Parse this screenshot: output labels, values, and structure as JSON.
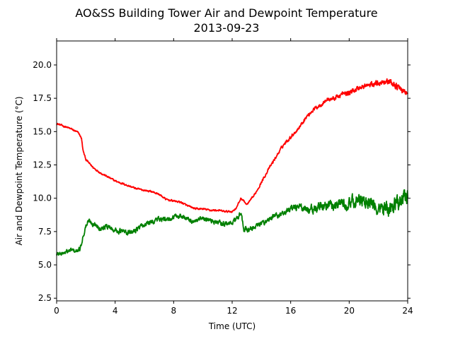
{
  "chart_data": {
    "type": "line",
    "title": "AO&SS Building Tower Air and Dewpoint Temperature",
    "subtitle": "2013-09-23",
    "xlabel": "Time (UTC)",
    "ylabel": "Air and Dewpoint Temperature (°C)",
    "xlim": [
      0,
      24
    ],
    "ylim": [
      2.3,
      21.8
    ],
    "xticks": [
      0,
      4,
      8,
      12,
      16,
      20,
      24
    ],
    "xtick_labels": [
      "0",
      "4",
      "8",
      "12",
      "16",
      "20",
      "24"
    ],
    "yticks": [
      2.5,
      5.0,
      7.5,
      10.0,
      12.5,
      15.0,
      17.5,
      20.0
    ],
    "ytick_labels": [
      "2.5",
      "5.0",
      "7.5",
      "10.0",
      "12.5",
      "15.0",
      "17.5",
      "20.0"
    ],
    "grid": false,
    "series": [
      {
        "color": "#ff0000",
        "x": [
          0,
          0.5,
          1.0,
          1.5,
          1.7,
          1.8,
          2.0,
          2.5,
          3.0,
          3.5,
          4.0,
          4.5,
          5.0,
          5.5,
          6.0,
          6.5,
          7.0,
          7.5,
          8.0,
          8.5,
          9.0,
          9.5,
          10.0,
          10.5,
          11.0,
          11.5,
          12.0,
          12.3,
          12.6,
          12.8,
          13.0,
          13.5,
          14.0,
          14.5,
          15.0,
          15.5,
          16.0,
          16.5,
          17.0,
          17.5,
          18.0,
          18.5,
          19.0,
          19.5,
          20.0,
          20.5,
          21.0,
          21.5,
          22.0,
          22.5,
          23.0,
          23.5,
          24.0
        ],
        "values": [
          15.6,
          15.4,
          15.2,
          14.9,
          14.5,
          13.6,
          12.9,
          12.3,
          11.9,
          11.6,
          11.3,
          11.1,
          10.9,
          10.7,
          10.6,
          10.5,
          10.3,
          9.9,
          9.8,
          9.7,
          9.4,
          9.2,
          9.2,
          9.1,
          9.1,
          9.0,
          9.0,
          9.3,
          10.0,
          9.8,
          9.5,
          10.2,
          11.2,
          12.2,
          13.1,
          14.0,
          14.6,
          15.2,
          16.0,
          16.6,
          17.0,
          17.4,
          17.5,
          17.8,
          17.9,
          18.2,
          18.4,
          18.5,
          18.7,
          18.8,
          18.6,
          18.2,
          17.8
        ]
      },
      {
        "color": "#008000",
        "x": [
          0,
          0.5,
          1.0,
          1.4,
          1.6,
          1.8,
          2.0,
          2.2,
          2.5,
          3.0,
          3.5,
          4.0,
          4.5,
          5.0,
          5.5,
          6.0,
          6.5,
          7.0,
          7.5,
          8.0,
          8.5,
          9.0,
          9.5,
          10.0,
          10.5,
          11.0,
          11.5,
          12.0,
          12.3,
          12.6,
          12.8,
          13.0,
          13.5,
          14.0,
          14.5,
          15.0,
          15.5,
          16.0,
          16.5,
          17.0,
          17.5,
          18.0,
          18.5,
          19.0,
          19.5,
          20.0,
          20.5,
          21.0,
          21.5,
          22.0,
          22.5,
          23.0,
          23.5,
          24.0
        ],
        "values": [
          5.8,
          5.9,
          6.1,
          6.0,
          6.2,
          7.1,
          7.9,
          8.3,
          8.1,
          7.8,
          7.9,
          7.6,
          7.5,
          7.4,
          7.7,
          8.0,
          8.2,
          8.5,
          8.3,
          8.6,
          8.7,
          8.4,
          8.2,
          8.5,
          8.3,
          8.2,
          8.1,
          8.1,
          8.5,
          8.8,
          7.7,
          7.6,
          7.8,
          8.1,
          8.4,
          8.7,
          8.9,
          9.2,
          9.4,
          9.2,
          9.1,
          9.4,
          9.5,
          9.5,
          9.7,
          9.6,
          9.8,
          9.7,
          9.5,
          9.3,
          9.2,
          9.4,
          9.8,
          10.3
        ]
      }
    ]
  }
}
